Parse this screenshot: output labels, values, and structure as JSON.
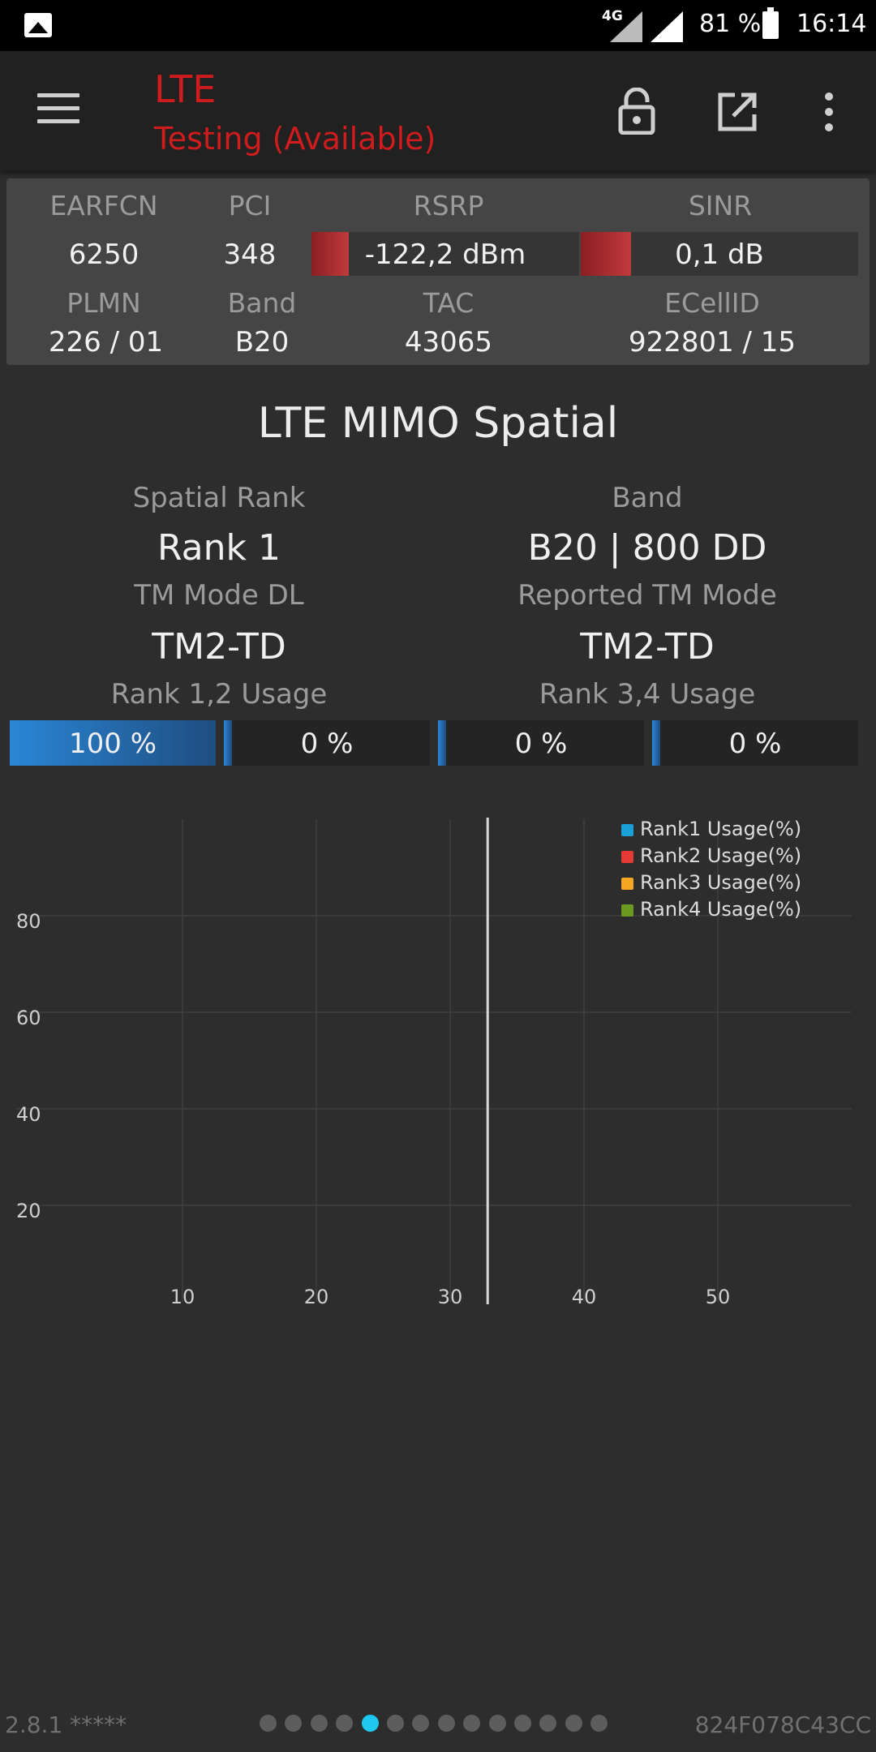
{
  "status_bar": {
    "network_type": "4G",
    "battery": "81 %",
    "time": "16:14"
  },
  "app_bar": {
    "title": "LTE",
    "subtitle": "Testing (Available)",
    "title_color": "#d01c1c"
  },
  "info": {
    "earfcn_label": "EARFCN",
    "earfcn": "6250",
    "pci_label": "PCI",
    "pci": "348",
    "rsrp_label": "RSRP",
    "rsrp": "-122,2 dBm",
    "rsrp_level": 0.14,
    "sinr_label": "SINR",
    "sinr": "0,1 dB",
    "sinr_level": 0.18,
    "plmn_label": "PLMN",
    "plmn": "226 / 01",
    "band_label": "Band",
    "band": "B20",
    "tac_label": "TAC",
    "tac": "43065",
    "ecellid_label": "ECellID",
    "ecellid": "922801 / 15",
    "meter_color": "#c13a3d"
  },
  "mimo": {
    "title": "LTE MIMO Spatial",
    "spatial_rank_label": "Spatial Rank",
    "spatial_rank": "Rank 1",
    "band_label": "Band",
    "band": "B20 | 800 DD",
    "tm_mode_dl_label": "TM Mode DL",
    "tm_mode_dl": "TM2-TD",
    "reported_tm_label": "Reported TM Mode",
    "reported_tm": "TM2-TD",
    "rank12_label": "Rank 1,2 Usage",
    "rank34_label": "Rank 3,4 Usage",
    "usage": [
      {
        "text": "100 %",
        "value": 100
      },
      {
        "text": "0 %",
        "value": 0
      },
      {
        "text": "0 %",
        "value": 0
      },
      {
        "text": "0 %",
        "value": 0
      }
    ],
    "bar_color": "#2a86d6"
  },
  "chart_data": {
    "type": "line",
    "title": "",
    "xlabel": "",
    "ylabel": "",
    "xlim": [
      0,
      60
    ],
    "ylim": [
      0,
      100
    ],
    "x_ticks": [
      10,
      20,
      30,
      40,
      50
    ],
    "y_ticks": [
      20,
      40,
      60,
      80
    ],
    "grid": true,
    "legend_position": "top-right",
    "cursor_x": 32.8,
    "series": [
      {
        "name": "Rank1 Usage(%)",
        "color": "#1a9fd6",
        "x": [],
        "y": []
      },
      {
        "name": "Rank2 Usage(%)",
        "color": "#e53935",
        "x": [],
        "y": []
      },
      {
        "name": "Rank3 Usage(%)",
        "color": "#f5a623",
        "x": [],
        "y": []
      },
      {
        "name": "Rank4 Usage(%)",
        "color": "#6a9a1f",
        "x": [],
        "y": []
      }
    ]
  },
  "footer": {
    "version": "2.8.1 *****",
    "device_id": "824F078C43CC",
    "page_count": 14,
    "active_page": 5,
    "active_color": "#1ec8f0"
  }
}
